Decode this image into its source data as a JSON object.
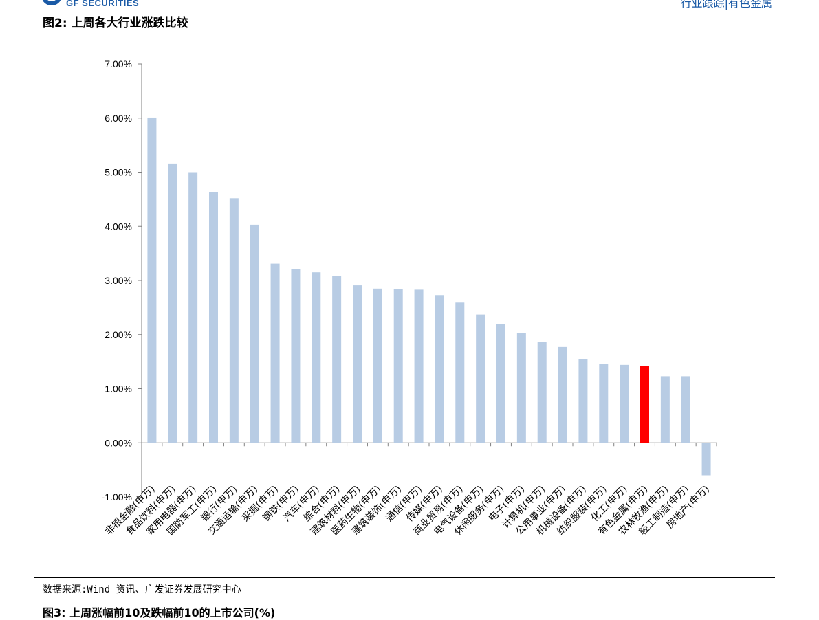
{
  "header": {
    "logo_text": "GF SECURITIES",
    "right_text": "行业跟踪|有色金属"
  },
  "figure": {
    "title": "图2:  上周各大行业涨跌比较"
  },
  "source": {
    "text": "数据来源:Wind 资讯、广发证券发展研究中心"
  },
  "next_figure": {
    "title": "图3:  上周涨幅前10及跌幅前10的上市公司(%)"
  },
  "colors": {
    "bar": "#b8cce4",
    "highlight": "#ff0000",
    "brand": "#1a5aa6"
  },
  "chart_data": {
    "type": "bar",
    "title": "",
    "xlabel": "",
    "ylabel": "",
    "ylim": [
      -0.01,
      0.07
    ],
    "yticks": [
      "-1.00%",
      "0.00%",
      "1.00%",
      "2.00%",
      "3.00%",
      "4.00%",
      "5.00%",
      "6.00%",
      "7.00%"
    ],
    "categories": [
      "非银金融(申万)",
      "食品饮料(申万)",
      "家用电器(申万)",
      "国防军工(申万)",
      "银行(申万)",
      "交通运输(申万)",
      "采掘(申万)",
      "钢铁(申万)",
      "汽车(申万)",
      "综合(申万)",
      "建筑材料(申万)",
      "医药生物(申万)",
      "建筑装饰(申万)",
      "通信(申万)",
      "传媒(申万)",
      "商业贸易(申万)",
      "电气设备(申万)",
      "休闲服务(申万)",
      "电子(申万)",
      "计算机(申万)",
      "公用事业(申万)",
      "机械设备(申万)",
      "纺织服装(申万)",
      "化工(申万)",
      "有色金属(申万)",
      "农林牧渔(申万)",
      "轻工制造(申万)",
      "房地产(申万)"
    ],
    "values": [
      0.0601,
      0.0516,
      0.05,
      0.0463,
      0.0452,
      0.0403,
      0.0331,
      0.0321,
      0.0315,
      0.0308,
      0.0291,
      0.0285,
      0.0284,
      0.0283,
      0.0273,
      0.0259,
      0.0237,
      0.022,
      0.0203,
      0.0186,
      0.0177,
      0.0155,
      0.0146,
      0.0144,
      0.0142,
      0.0123,
      0.0123,
      -0.006
    ],
    "highlight_category": "有色金属(申万)",
    "grid": false,
    "legend": "none"
  }
}
